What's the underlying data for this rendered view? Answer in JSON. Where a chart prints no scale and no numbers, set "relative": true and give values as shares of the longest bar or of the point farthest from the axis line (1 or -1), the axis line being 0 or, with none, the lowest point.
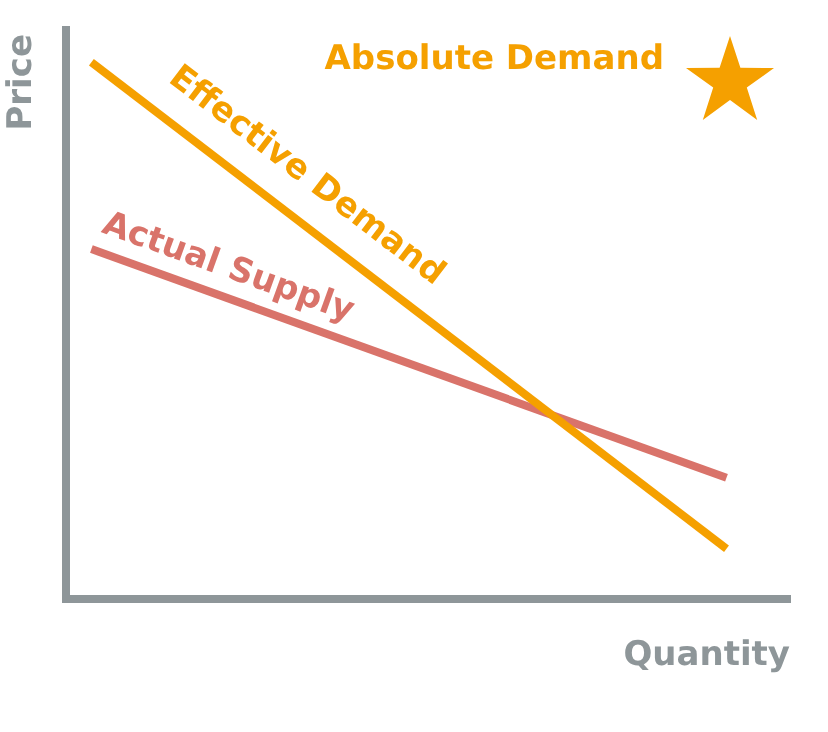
{
  "chart_data": {
    "type": "line",
    "relative": true,
    "categories": [
      null,
      null
    ],
    "series": [
      {
        "name": "Effective Demand",
        "color": "#f5a000",
        "values": [
          1,
          0.094
        ]
      },
      {
        "name": "Actual Supply",
        "color": "#d9736a",
        "values": [
          0.652,
          0.226
        ]
      }
    ],
    "xlabel": "Quantity",
    "ylabel": "Price",
    "annotations": [
      "Absolute Demand"
    ],
    "grid": false,
    "legend": false,
    "marker": "none",
    "line_style": "solid"
  }
}
